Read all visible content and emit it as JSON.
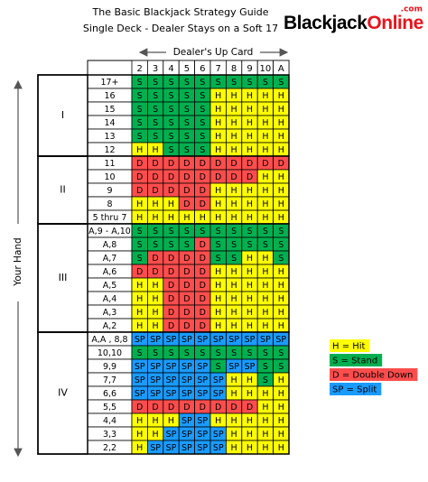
{
  "header": {
    "title": "The Basic Blackjack Strategy Guide",
    "subtitle": "Single Deck - Dealer Stays on a Soft 17"
  },
  "logo": {
    "main": "Blackjack",
    "accent": "Online",
    "suffix": ".com"
  },
  "dealer_label": "Dealer's Up Card",
  "hand_label": "Your Hand",
  "columns": [
    "2",
    "3",
    "4",
    "5",
    "6",
    "7",
    "8",
    "9",
    "10",
    "A"
  ],
  "sections": [
    {
      "label": "I",
      "rows": [
        {
          "hand": "17+",
          "actions": [
            "S",
            "S",
            "S",
            "S",
            "S",
            "S",
            "S",
            "S",
            "S",
            "S"
          ]
        },
        {
          "hand": "16",
          "actions": [
            "S",
            "S",
            "S",
            "S",
            "S",
            "H",
            "H",
            "H",
            "H",
            "H"
          ]
        },
        {
          "hand": "15",
          "actions": [
            "S",
            "S",
            "S",
            "S",
            "S",
            "H",
            "H",
            "H",
            "H",
            "H"
          ]
        },
        {
          "hand": "14",
          "actions": [
            "S",
            "S",
            "S",
            "S",
            "S",
            "H",
            "H",
            "H",
            "H",
            "H"
          ]
        },
        {
          "hand": "13",
          "actions": [
            "S",
            "S",
            "S",
            "S",
            "S",
            "H",
            "H",
            "H",
            "H",
            "H"
          ]
        },
        {
          "hand": "12",
          "actions": [
            "H",
            "H",
            "S",
            "S",
            "S",
            "H",
            "H",
            "H",
            "H",
            "H"
          ]
        }
      ]
    },
    {
      "label": "II",
      "rows": [
        {
          "hand": "11",
          "actions": [
            "D",
            "D",
            "D",
            "D",
            "D",
            "D",
            "D",
            "D",
            "D",
            "D"
          ]
        },
        {
          "hand": "10",
          "actions": [
            "D",
            "D",
            "D",
            "D",
            "D",
            "D",
            "D",
            "D",
            "H",
            "H"
          ]
        },
        {
          "hand": "9",
          "actions": [
            "D",
            "D",
            "D",
            "D",
            "D",
            "H",
            "H",
            "H",
            "H",
            "H"
          ]
        },
        {
          "hand": "8",
          "actions": [
            "H",
            "H",
            "H",
            "D",
            "D",
            "H",
            "H",
            "H",
            "H",
            "H"
          ]
        },
        {
          "hand": "5 thru 7",
          "actions": [
            "H",
            "H",
            "H",
            "H",
            "H",
            "H",
            "H",
            "H",
            "H",
            "H"
          ]
        }
      ]
    },
    {
      "label": "III",
      "rows": [
        {
          "hand": "A,9 - A,10",
          "actions": [
            "S",
            "S",
            "S",
            "S",
            "S",
            "S",
            "S",
            "S",
            "S",
            "S"
          ]
        },
        {
          "hand": "A,8",
          "actions": [
            "S",
            "S",
            "S",
            "S",
            "D",
            "S",
            "S",
            "S",
            "S",
            "S"
          ]
        },
        {
          "hand": "A,7",
          "actions": [
            "S",
            "D",
            "D",
            "D",
            "D",
            "S",
            "S",
            "H",
            "H",
            "S"
          ]
        },
        {
          "hand": "A,6",
          "actions": [
            "D",
            "D",
            "D",
            "D",
            "D",
            "H",
            "H",
            "H",
            "H",
            "H"
          ]
        },
        {
          "hand": "A,5",
          "actions": [
            "H",
            "H",
            "D",
            "D",
            "D",
            "H",
            "H",
            "H",
            "H",
            "H"
          ]
        },
        {
          "hand": "A,4",
          "actions": [
            "H",
            "H",
            "D",
            "D",
            "D",
            "H",
            "H",
            "H",
            "H",
            "H"
          ]
        },
        {
          "hand": "A,3",
          "actions": [
            "H",
            "H",
            "D",
            "D",
            "D",
            "H",
            "H",
            "H",
            "H",
            "H"
          ]
        },
        {
          "hand": "A,2",
          "actions": [
            "H",
            "H",
            "D",
            "D",
            "D",
            "H",
            "H",
            "H",
            "H",
            "H"
          ]
        }
      ]
    },
    {
      "label": "IV",
      "rows": [
        {
          "hand": "A,A , 8,8",
          "actions": [
            "SP",
            "SP",
            "SP",
            "SP",
            "SP",
            "SP",
            "SP",
            "SP",
            "SP",
            "SP"
          ]
        },
        {
          "hand": "10,10",
          "actions": [
            "S",
            "S",
            "S",
            "S",
            "S",
            "S",
            "S",
            "S",
            "S",
            "S"
          ]
        },
        {
          "hand": "9,9",
          "actions": [
            "SP",
            "SP",
            "SP",
            "SP",
            "SP",
            "S",
            "SP",
            "SP",
            "S",
            "S"
          ]
        },
        {
          "hand": "7,7",
          "actions": [
            "SP",
            "SP",
            "SP",
            "SP",
            "SP",
            "SP",
            "H",
            "H",
            "S",
            "H"
          ]
        },
        {
          "hand": "6,6",
          "actions": [
            "SP",
            "SP",
            "SP",
            "SP",
            "SP",
            "SP",
            "H",
            "H",
            "H",
            "H"
          ]
        },
        {
          "hand": "5,5",
          "actions": [
            "D",
            "D",
            "D",
            "D",
            "D",
            "D",
            "D",
            "D",
            "H",
            "H"
          ]
        },
        {
          "hand": "4,4",
          "actions": [
            "H",
            "H",
            "H",
            "SP",
            "SP",
            "H",
            "H",
            "H",
            "H",
            "H"
          ]
        },
        {
          "hand": "3,3",
          "actions": [
            "H",
            "H",
            "SP",
            "SP",
            "SP",
            "SP",
            "H",
            "H",
            "H",
            "H"
          ]
        },
        {
          "hand": "2,2",
          "actions": [
            "H",
            "SP",
            "SP",
            "SP",
            "SP",
            "SP",
            "H",
            "H",
            "H",
            "H"
          ]
        }
      ]
    }
  ],
  "legend": [
    {
      "code": "H",
      "text": "H = Hit",
      "color": "#ffff00"
    },
    {
      "code": "S",
      "text": "S = Stand",
      "color": "#00b050"
    },
    {
      "code": "D",
      "text": "D = Double Down",
      "color": "#ff4d4d"
    },
    {
      "code": "SP",
      "text": "SP = Split",
      "color": "#1a9bff"
    }
  ]
}
